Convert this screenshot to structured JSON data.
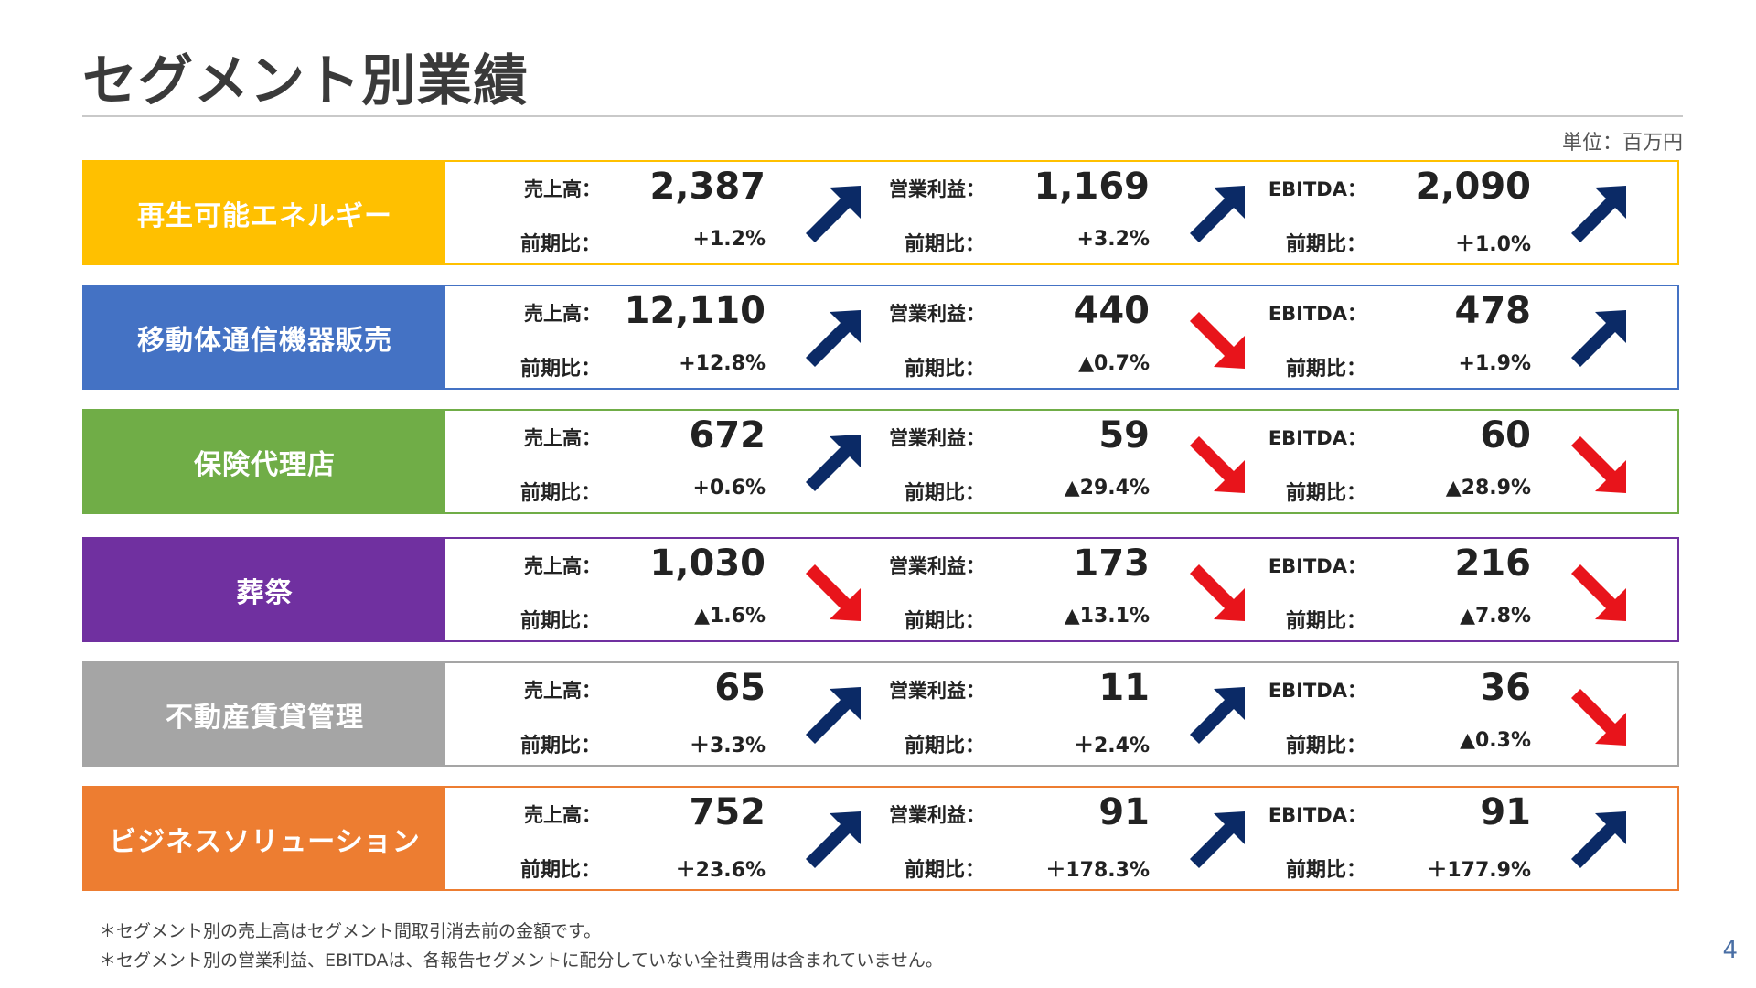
{
  "title": "セグメント別業績",
  "unit": "単位：百万円",
  "labels": {
    "sales": "売上高：",
    "op": "営業利益：",
    "ebitda": "EBITDA：",
    "yoy": "前期比："
  },
  "colors": {
    "up": "#0b2a66",
    "down": "#e8141b"
  },
  "segments": [
    {
      "name": "再生可能エネルギー",
      "color": "#ffc000",
      "sales": "2,387",
      "sales_yoy": "+1.2%",
      "sales_dir": "up",
      "op": "1,169",
      "op_yoy": "+3.2%",
      "op_dir": "up",
      "ebitda": "2,090",
      "ebitda_yoy": "＋1.0%",
      "ebitda_dir": "up"
    },
    {
      "name": "移動体通信機器販売",
      "color": "#4472c4",
      "sales": "12,110",
      "sales_yoy": "+12.8%",
      "sales_dir": "up",
      "op": "440",
      "op_yoy": "▲0.7%",
      "op_dir": "down",
      "ebitda": "478",
      "ebitda_yoy": "+1.9%",
      "ebitda_dir": "up"
    },
    {
      "name": "保険代理店",
      "color": "#70ad47",
      "sales": "672",
      "sales_yoy": "+0.6%",
      "sales_dir": "up",
      "op": "59",
      "op_yoy": "▲29.4%",
      "op_dir": "down",
      "ebitda": "60",
      "ebitda_yoy": "▲28.9%",
      "ebitda_dir": "down"
    },
    {
      "name": "葬祭",
      "color": "#7030a0",
      "sales": "1,030",
      "sales_yoy": "▲1.6%",
      "sales_dir": "down",
      "op": "173",
      "op_yoy": "▲13.1%",
      "op_dir": "down",
      "ebitda": "216",
      "ebitda_yoy": "▲7.8%",
      "ebitda_dir": "down"
    },
    {
      "name": "不動産賃貸管理",
      "color": "#a5a5a5",
      "sales": "65",
      "sales_yoy": "＋3.3%",
      "sales_dir": "up",
      "op": "11",
      "op_yoy": "＋2.4%",
      "op_dir": "up",
      "ebitda": "36",
      "ebitda_yoy": "▲0.3%",
      "ebitda_dir": "down"
    },
    {
      "name": "ビジネスソリューション",
      "color": "#ed7d31",
      "sales": "752",
      "sales_yoy": "＋23.6%",
      "sales_dir": "up",
      "op": "91",
      "op_yoy": "＋178.3%",
      "op_dir": "up",
      "ebitda": "91",
      "ebitda_yoy": "＋177.9%",
      "ebitda_dir": "up"
    }
  ],
  "notes": [
    "＊セグメント別の売上高はセグメント間取引消去前の金額です。",
    "＊セグメント別の営業利益、EBITDAは、各報告セグメントに配分していない全社費用は含まれていません。"
  ],
  "page_number": "4"
}
